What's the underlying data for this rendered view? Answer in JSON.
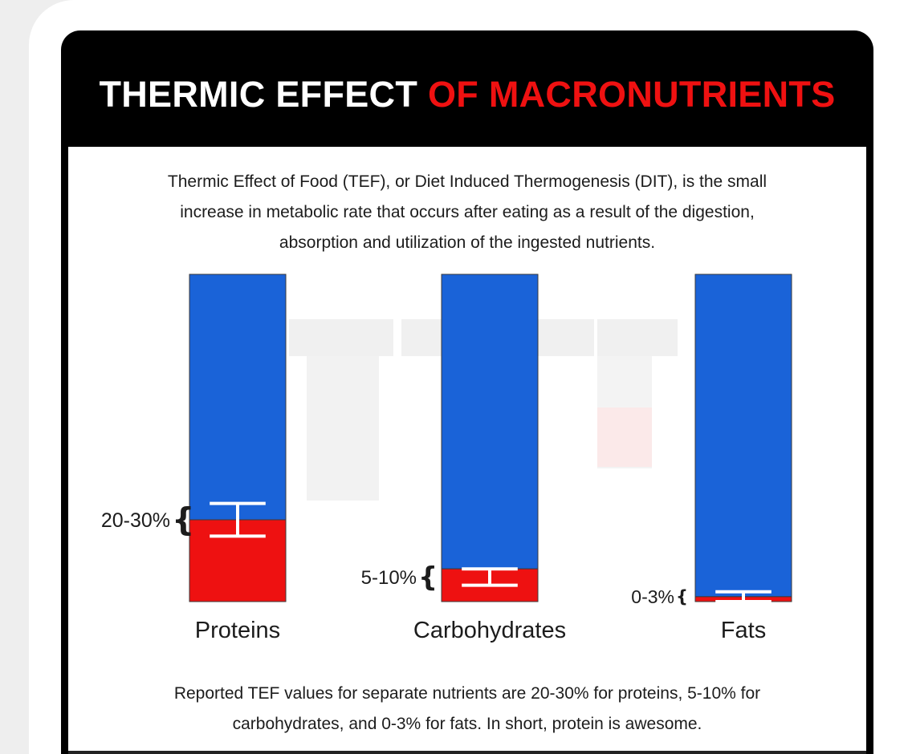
{
  "headline": {
    "white": "THERMIC EFFECT",
    "red": "OF MACRONUTRIENTS"
  },
  "intro": [
    "Thermic Effect of Food (TEF), or Diet Induced Thermogenesis (DIT), is the small",
    "increase in metabolic rate that occurs after eating as a result of the digestion,",
    "absorption and utilization of the ingested nutrients."
  ],
  "footer": [
    "Reported TEF values for separate nutrients are 20-30% for proteins, 5-10% for",
    "carbohydrates, and 0-3% for fats. In short, protein is awesome."
  ],
  "colors": {
    "bar_total": "#1a63d8",
    "bar_tef": "#ee1111",
    "headline_red": "#ef1111"
  },
  "chart_data": {
    "type": "bar",
    "stacked": true,
    "categories": [
      "Proteins",
      "Carbohydrates",
      "Fats"
    ],
    "series": [
      {
        "values": [
          25,
          10,
          1.5
        ]
      },
      {
        "values": [
          75,
          90,
          98.5
        ]
      }
    ],
    "ranges": [
      {
        "category": "Proteins",
        "label": "20-30%",
        "low": 20,
        "high": 30
      },
      {
        "category": "Carbohydrates",
        "label": "5-10%",
        "low": 5,
        "high": 10
      },
      {
        "category": "Fats",
        "label": "0-3%",
        "low": 0,
        "high": 3
      }
    ],
    "ylim": [
      0,
      100
    ],
    "title": "",
    "xlabel": "",
    "ylabel": "",
    "grid": false,
    "legend": "none"
  }
}
